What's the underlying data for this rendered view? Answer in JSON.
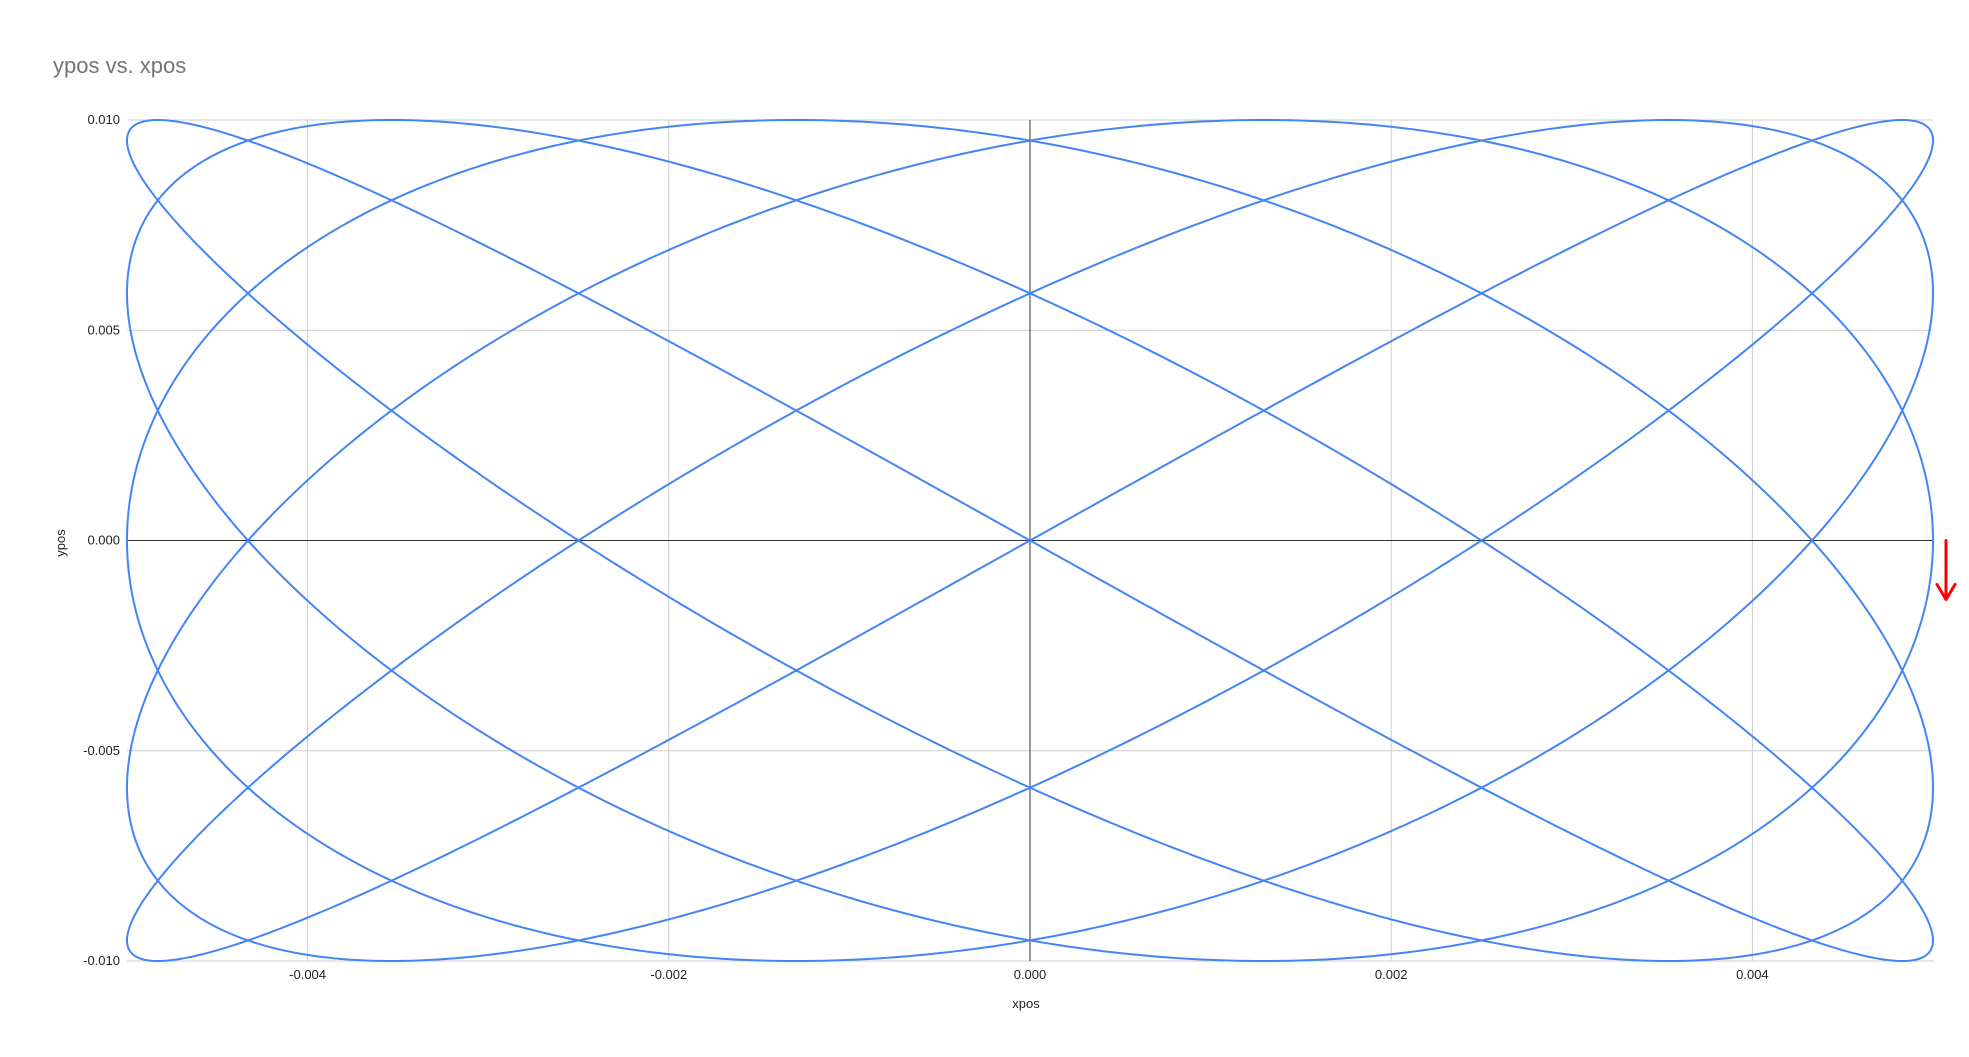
{
  "chart_data": {
    "type": "line",
    "title": "ypos vs. xpos",
    "xlabel": "xpos",
    "ylabel": "ypos",
    "xlim": [
      -0.005,
      0.005
    ],
    "ylim": [
      -0.01,
      0.01
    ],
    "x_ticks": [
      -0.004,
      -0.002,
      0.0,
      0.002,
      0.004
    ],
    "x_tick_labels": [
      "-0.004",
      "-0.002",
      "0.000",
      "0.002",
      "0.004"
    ],
    "y_ticks": [
      0.01,
      0.005,
      0.0,
      -0.005,
      -0.01
    ],
    "y_tick_labels": [
      "0.010",
      "0.005",
      "0.000",
      "-0.005",
      "-0.010"
    ],
    "grid": true,
    "legend": "none",
    "series": [
      {
        "curve": "lissajous",
        "x_equation": "x = 0.005 * cos(5t)",
        "y_equation": "y = 0.01 * sin(6t)",
        "x_amplitude": 0.005,
        "y_amplitude": 0.01,
        "x_frequency": 5,
        "y_frequency": 6,
        "t_range": [
          0,
          6.2832
        ],
        "color": "#4285f4"
      }
    ],
    "annotation": {
      "type": "arrow",
      "direction": "down",
      "color": "#ff0000",
      "at": [
        0.005,
        0.0
      ]
    }
  }
}
